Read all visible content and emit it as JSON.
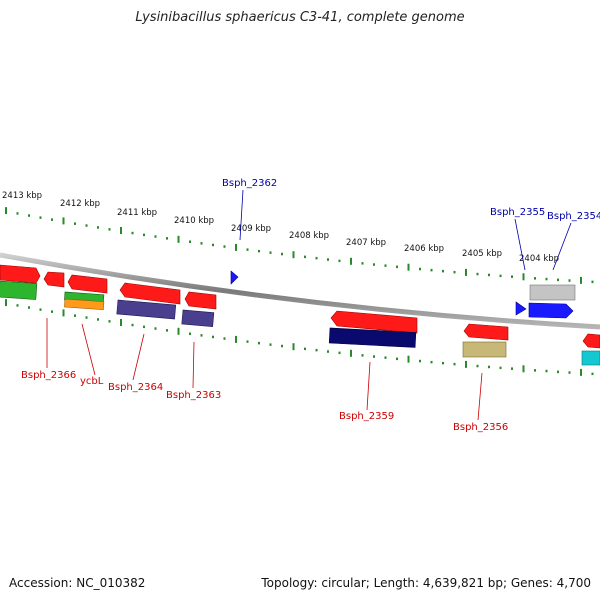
{
  "title": "Lysinibacillus sphaericus C3-41, complete genome",
  "footer": {
    "accession": "Accession: NC_010382",
    "summary": "Topology: circular; Length: 4,639,821 bp; Genes: 4,700"
  },
  "scale_labels": [
    "2413 kbp",
    "2412 kbp",
    "2411 kbp",
    "2410 kbp",
    "2409 kbp",
    "2408 kbp",
    "2407 kbp",
    "2406 kbp",
    "2405 kbp",
    "2404 kbp"
  ],
  "colors": {
    "red": "#ff1a1a",
    "green": "#2db52d",
    "purple": "#4a3f8f",
    "navy": "#0a0a6e",
    "gray": "#b8b8b8",
    "blue": "#1a1aff",
    "cyan": "#14c8d2",
    "tan": "#c8b878",
    "backbone": "#888888",
    "tick": "#2a8a2a",
    "label_red": "#cc0000",
    "label_blue": "#0000aa"
  },
  "gene_labels_top": [
    {
      "id": "bsph2362",
      "text": "Bsph_2362"
    },
    {
      "id": "bsph2355",
      "text": "Bsph_2355"
    },
    {
      "id": "bsph2354",
      "text": "Bsph_2354"
    }
  ],
  "gene_labels_bottom": [
    {
      "id": "bsph2366",
      "text": "Bsph_2366"
    },
    {
      "id": "ycbl",
      "text": "ycbL"
    },
    {
      "id": "bsph2364",
      "text": "Bsph_2364"
    },
    {
      "id": "bsph2363",
      "text": "Bsph_2363"
    },
    {
      "id": "bsph2359",
      "text": "Bsph_2359"
    },
    {
      "id": "bsph2356",
      "text": "Bsph_2356"
    }
  ]
}
